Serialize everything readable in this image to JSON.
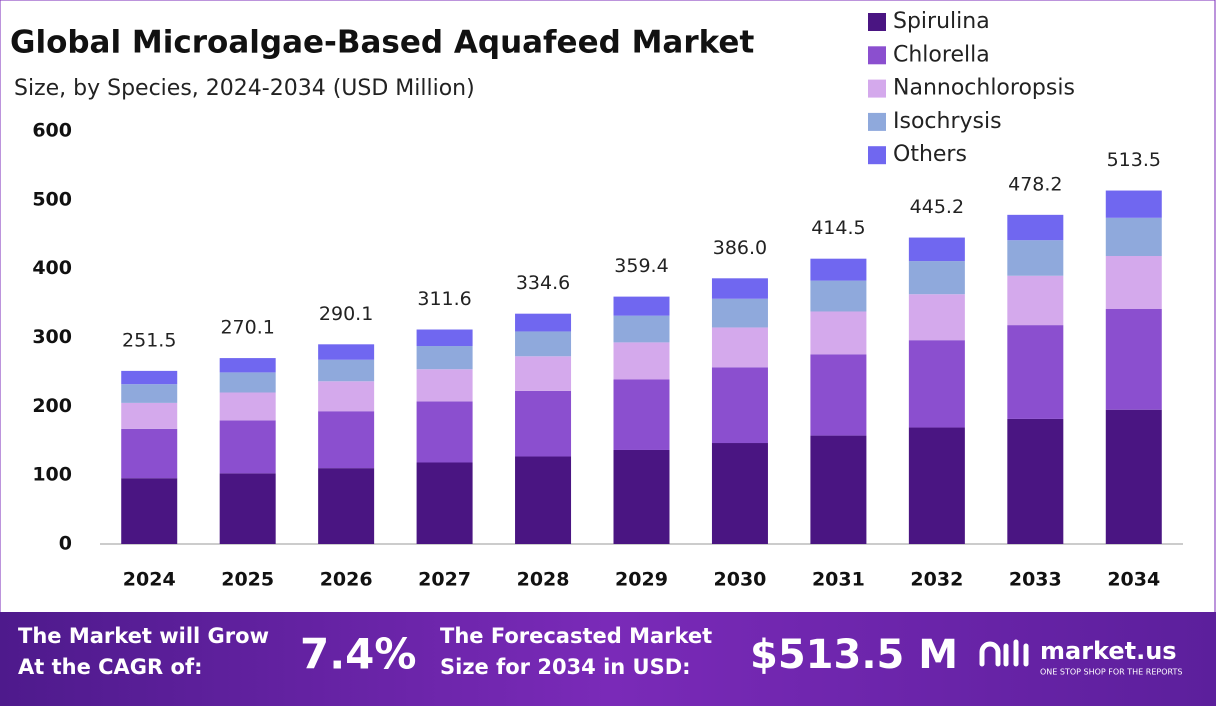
{
  "chart_data": {
    "type": "stacked_bar",
    "title": "Global Microalgae-Based Aquafeed Market",
    "subtitle": "Size, by Species, 2024-2034 (USD Million)",
    "categories": [
      "2024",
      "2025",
      "2026",
      "2027",
      "2028",
      "2029",
      "2030",
      "2031",
      "2032",
      "2033",
      "2034"
    ],
    "series": [
      {
        "name": "Spirulina",
        "color": "#4a1582",
        "values": [
          95.6,
          102.6,
          110.2,
          118.4,
          127.1,
          136.6,
          146.7,
          157.5,
          169.2,
          181.7,
          195.1
        ]
      },
      {
        "name": "Chlorella",
        "color": "#8b4fcf",
        "values": [
          71.7,
          77.0,
          82.7,
          88.8,
          95.4,
          102.4,
          110.0,
          118.1,
          126.9,
          136.3,
          146.3
        ]
      },
      {
        "name": "Nannochloropsis",
        "color": "#d4a9ec",
        "values": [
          37.7,
          40.5,
          43.5,
          46.7,
          50.2,
          53.9,
          57.9,
          62.2,
          66.8,
          71.7,
          77.0
        ]
      },
      {
        "name": "Isochrysis",
        "color": "#8fa9dc",
        "values": [
          27.2,
          29.2,
          31.3,
          33.7,
          36.1,
          38.8,
          41.7,
          44.8,
          48.1,
          51.6,
          55.5
        ]
      },
      {
        "name": "Others",
        "color": "#7067f0",
        "values": [
          19.3,
          20.8,
          22.4,
          24.0,
          25.8,
          27.7,
          29.7,
          31.9,
          34.2,
          36.9,
          39.6
        ]
      }
    ],
    "totals": [
      251.5,
      270.1,
      290.1,
      311.6,
      334.6,
      359.4,
      386.0,
      414.5,
      445.2,
      478.2,
      513.5
    ],
    "total_labels": [
      "251.5",
      "270.1",
      "290.1",
      "311.6",
      "334.6",
      "359.4",
      "386.0",
      "414.5",
      "445.2",
      "478.2",
      "513.5"
    ],
    "ylim": [
      0,
      600
    ],
    "yticks": [
      0,
      100,
      200,
      300,
      400,
      500,
      600
    ],
    "grid": false,
    "legend": "top-right"
  },
  "footer": {
    "cagr_text": [
      "The Market will Grow",
      "At the CAGR of:"
    ],
    "cagr": "7.4%",
    "forecast_text": [
      "The Forecasted Market",
      "Size for 2034 in USD:"
    ],
    "forecast": "$513.5 M",
    "brand": "market.us",
    "tagline": "ONE STOP SHOP FOR THE REPORTS"
  }
}
